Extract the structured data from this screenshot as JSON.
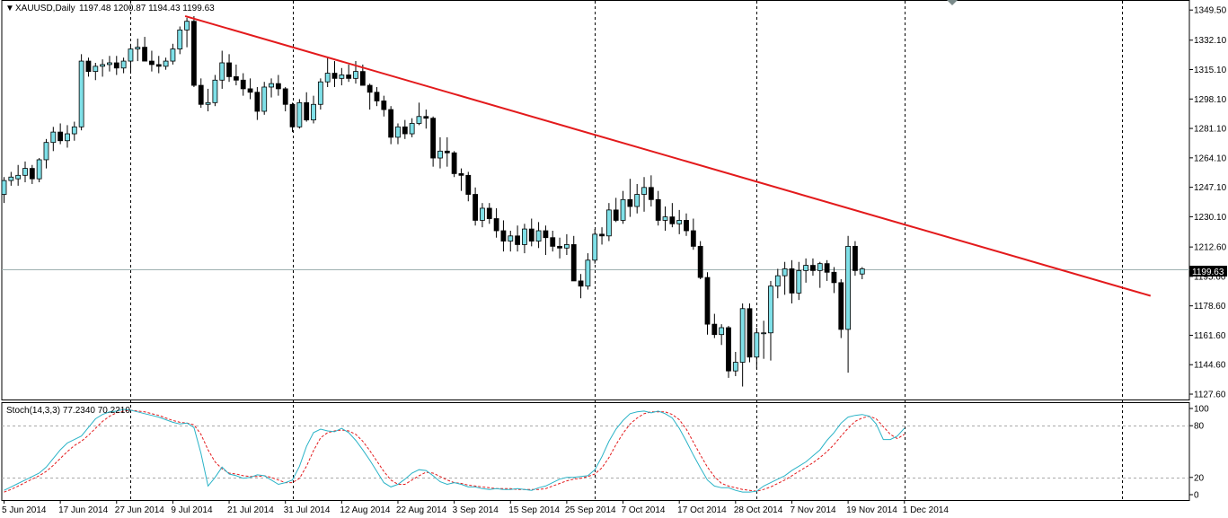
{
  "main_panel": {
    "symbol": "XAUUSD,Daily",
    "ohlc": "1197.48 1200.87 1194.43 1199.63",
    "current_price_label": "1199.63"
  },
  "indicator_panel": {
    "label": "Stoch(14,3,3) 77.2340 70.2210",
    "levels": [
      "100",
      "80",
      "20",
      "0"
    ]
  },
  "colors": {
    "bull_candle": "#7FE0E8",
    "bear_candle": "#000000",
    "trendline": "#E31A1C",
    "stoch_main": "#2AB3C7",
    "stoch_signal": "#E31A1C",
    "price_line": "#9EB0B0"
  },
  "chart_data": [
    {
      "type": "candlestick",
      "title": "XAUUSD,Daily",
      "y_ticks": [
        1349.5,
        1332.1,
        1315.1,
        1298.1,
        1281.1,
        1264.1,
        1247.1,
        1230.1,
        1212.6,
        1195.6,
        1178.6,
        1161.6,
        1144.6,
        1127.6
      ],
      "y_tick_labels": [
        "1349.50",
        "1332.10",
        "1315.10",
        "1298.10",
        "1281.10",
        "1264.10",
        "1247.10",
        "1230.10",
        "1212.60",
        "1195.60",
        "1178.60",
        "1161.60",
        "1144.60",
        "1127.60"
      ],
      "ylim": [
        1124.5,
        1355.3
      ],
      "x_tick_labels": [
        "5 Jun 2014",
        "17 Jun 2014",
        "27 Jun 2014",
        "9 Jul 2014",
        "21 Jul 2014",
        "31 Jul 2014",
        "12 Aug 2014",
        "22 Aug 2014",
        "3 Sep 2014",
        "15 Sep 2014",
        "25 Sep 2014",
        "7 Oct 2014",
        "17 Oct 2014",
        "28 Oct 2014",
        "7 Nov 2014",
        "19 Nov 2014",
        "1 Dec 2014"
      ],
      "x_tick_bars": [
        0,
        8,
        16,
        24,
        32,
        40,
        48,
        56,
        64,
        72,
        80,
        88,
        96,
        104,
        112,
        120,
        128
      ],
      "vertical_grid_bars": [
        18,
        41,
        84,
        107,
        128,
        159
      ],
      "current_price": 1199.63,
      "bars_total_slots": 169,
      "candles": [
        [
          1243,
          1253,
          1238,
          1251
        ],
        [
          1251,
          1256,
          1248,
          1253
        ],
        [
          1252,
          1260,
          1248,
          1254
        ],
        [
          1254,
          1262,
          1250,
          1258
        ],
        [
          1258,
          1260,
          1249,
          1252
        ],
        [
          1252,
          1264,
          1250,
          1263
        ],
        [
          1263,
          1275,
          1258,
          1273
        ],
        [
          1273,
          1282,
          1268,
          1279
        ],
        [
          1279,
          1284,
          1272,
          1274
        ],
        [
          1274,
          1283,
          1270,
          1278
        ],
        [
          1278,
          1285,
          1274,
          1282
        ],
        [
          1282,
          1324,
          1280,
          1320
        ],
        [
          1320,
          1322,
          1311,
          1314
        ],
        [
          1314,
          1319,
          1309,
          1317
        ],
        [
          1317,
          1321,
          1311,
          1318
        ],
        [
          1318,
          1323,
          1314,
          1319
        ],
        [
          1319,
          1323,
          1312,
          1316
        ],
        [
          1316,
          1322,
          1313,
          1320
        ],
        [
          1320,
          1330,
          1314,
          1327
        ],
        [
          1327,
          1333,
          1320,
          1328
        ],
        [
          1328,
          1334,
          1320,
          1320
        ],
        [
          1320,
          1326,
          1314,
          1318
        ],
        [
          1318,
          1323,
          1313,
          1317
        ],
        [
          1317,
          1322,
          1315,
          1320
        ],
        [
          1320,
          1330,
          1318,
          1327
        ],
        [
          1327,
          1340,
          1324,
          1338
        ],
        [
          1338,
          1345,
          1328,
          1343
        ],
        [
          1343,
          1346,
          1305,
          1306
        ],
        [
          1306,
          1310,
          1293,
          1295
        ],
        [
          1295,
          1304,
          1291,
          1296
        ],
        [
          1296,
          1312,
          1294,
          1309
        ],
        [
          1309,
          1326,
          1304,
          1319
        ],
        [
          1319,
          1324,
          1308,
          1311
        ],
        [
          1311,
          1318,
          1306,
          1309
        ],
        [
          1309,
          1313,
          1300,
          1304
        ],
        [
          1304,
          1310,
          1298,
          1302
        ],
        [
          1302,
          1305,
          1286,
          1291
        ],
        [
          1291,
          1308,
          1289,
          1305
        ],
        [
          1305,
          1310,
          1299,
          1307
        ],
        [
          1307,
          1312,
          1300,
          1304
        ],
        [
          1304,
          1305,
          1291,
          1295
        ],
        [
          1295,
          1296,
          1279,
          1282
        ],
        [
          1282,
          1298,
          1281,
          1296
        ],
        [
          1296,
          1302,
          1285,
          1286
        ],
        [
          1286,
          1300,
          1284,
          1295
        ],
        [
          1295,
          1310,
          1292,
          1308
        ],
        [
          1308,
          1322,
          1305,
          1313
        ],
        [
          1313,
          1320,
          1305,
          1310
        ],
        [
          1310,
          1316,
          1306,
          1312
        ],
        [
          1312,
          1318,
          1308,
          1310
        ],
        [
          1310,
          1320,
          1307,
          1314
        ],
        [
          1314,
          1318,
          1306,
          1306
        ],
        [
          1306,
          1307,
          1292,
          1302
        ],
        [
          1302,
          1305,
          1294,
          1297
        ],
        [
          1297,
          1300,
          1288,
          1292
        ],
        [
          1292,
          1294,
          1272,
          1276
        ],
        [
          1276,
          1284,
          1272,
          1282
        ],
        [
          1282,
          1286,
          1275,
          1278
        ],
        [
          1278,
          1287,
          1276,
          1284
        ],
        [
          1284,
          1296,
          1283,
          1288
        ],
        [
          1288,
          1292,
          1281,
          1287
        ],
        [
          1287,
          1288,
          1259,
          1264
        ],
        [
          1264,
          1276,
          1258,
          1268
        ],
        [
          1268,
          1276,
          1259,
          1267
        ],
        [
          1267,
          1268,
          1253,
          1255
        ],
        [
          1255,
          1258,
          1245,
          1254
        ],
        [
          1254,
          1256,
          1239,
          1243
        ],
        [
          1243,
          1247,
          1225,
          1228
        ],
        [
          1228,
          1238,
          1224,
          1235
        ],
        [
          1235,
          1238,
          1226,
          1229
        ],
        [
          1229,
          1235,
          1218,
          1222
        ],
        [
          1222,
          1228,
          1210,
          1216
        ],
        [
          1216,
          1222,
          1210,
          1219
        ],
        [
          1219,
          1225,
          1210,
          1214
        ],
        [
          1214,
          1226,
          1209,
          1223
        ],
        [
          1223,
          1229,
          1213,
          1216
        ],
        [
          1216,
          1227,
          1212,
          1222
        ],
        [
          1222,
          1225,
          1208,
          1218
        ],
        [
          1218,
          1222,
          1210,
          1213
        ],
        [
          1213,
          1218,
          1206,
          1212
        ],
        [
          1212,
          1220,
          1208,
          1214
        ],
        [
          1214,
          1219,
          1195,
          1193
        ],
        [
          1193,
          1197,
          1183,
          1190
        ],
        [
          1190,
          1209,
          1188,
          1205
        ],
        [
          1205,
          1223,
          1203,
          1220
        ],
        [
          1220,
          1224,
          1214,
          1219
        ],
        [
          1219,
          1238,
          1216,
          1234
        ],
        [
          1234,
          1241,
          1227,
          1228
        ],
        [
          1228,
          1245,
          1226,
          1240
        ],
        [
          1240,
          1252,
          1230,
          1236
        ],
        [
          1236,
          1249,
          1232,
          1243
        ],
        [
          1243,
          1253,
          1233,
          1247
        ],
        [
          1247,
          1254,
          1236,
          1240
        ],
        [
          1240,
          1245,
          1225,
          1228
        ],
        [
          1228,
          1236,
          1222,
          1230
        ],
        [
          1230,
          1238,
          1224,
          1226
        ],
        [
          1226,
          1234,
          1220,
          1228
        ],
        [
          1228,
          1232,
          1219,
          1222
        ],
        [
          1222,
          1229,
          1211,
          1213
        ],
        [
          1213,
          1216,
          1194,
          1195
        ],
        [
          1195,
          1198,
          1162,
          1168
        ],
        [
          1168,
          1174,
          1160,
          1162
        ],
        [
          1162,
          1168,
          1156,
          1166
        ],
        [
          1166,
          1167,
          1137,
          1141
        ],
        [
          1141,
          1152,
          1138,
          1146
        ],
        [
          1146,
          1180,
          1132,
          1177
        ],
        [
          1177,
          1180,
          1146,
          1149
        ],
        [
          1149,
          1166,
          1142,
          1163
        ],
        [
          1163,
          1170,
          1148,
          1163
        ],
        [
          1163,
          1193,
          1147,
          1190
        ],
        [
          1190,
          1200,
          1183,
          1196
        ],
        [
          1196,
          1204,
          1185,
          1200
        ],
        [
          1200,
          1205,
          1180,
          1186
        ],
        [
          1186,
          1204,
          1182,
          1199
        ],
        [
          1199,
          1206,
          1192,
          1202
        ],
        [
          1202,
          1206,
          1196,
          1199
        ],
        [
          1199,
          1204,
          1189,
          1203
        ],
        [
          1203,
          1205,
          1193,
          1198
        ],
        [
          1198,
          1201,
          1186,
          1192
        ],
        [
          1192,
          1194,
          1160,
          1165
        ],
        [
          1165,
          1219,
          1140,
          1213
        ],
        [
          1213,
          1216,
          1196,
          1199
        ],
        [
          1197,
          1201,
          1194,
          1200
        ]
      ]
    },
    {
      "type": "line",
      "title": "Stoch(14,3,3) 77.2340 70.2210",
      "ylim": [
        0,
        100
      ],
      "y_ticks": [
        100,
        80,
        20,
        0
      ],
      "series": [
        {
          "values": [
            5,
            9,
            13,
            17,
            21,
            25,
            32,
            42,
            52,
            60,
            64,
            68,
            78,
            88,
            93,
            96,
            97,
            99,
            98,
            96,
            94,
            92,
            90,
            87,
            84,
            82,
            83,
            78,
            48,
            10,
            20,
            32,
            24,
            22,
            19,
            20,
            23,
            22,
            17,
            12,
            14,
            17,
            33,
            56,
            72,
            76,
            74,
            73,
            77,
            72,
            63,
            52,
            40,
            27,
            14,
            9,
            12,
            18,
            25,
            29,
            28,
            22,
            15,
            12,
            14,
            12,
            9,
            9,
            7,
            6,
            7,
            6,
            6,
            7,
            6,
            5,
            8,
            10,
            14,
            18,
            20,
            20,
            21,
            22,
            29,
            44,
            62,
            76,
            86,
            94,
            96,
            97,
            95,
            97,
            94,
            89,
            77,
            62,
            46,
            31,
            17,
            10,
            8,
            8,
            5,
            3,
            3,
            4,
            10,
            14,
            18,
            22,
            28,
            33,
            38,
            45,
            52,
            63,
            72,
            83,
            90,
            92,
            93,
            91,
            82,
            64,
            64,
            68,
            77
          ]
        },
        {
          "values": [
            3,
            6,
            10,
            14,
            18,
            22,
            27,
            34,
            42,
            50,
            57,
            62,
            69,
            77,
            85,
            91,
            95,
            97,
            98,
            97,
            96,
            94,
            92,
            89,
            86,
            84,
            83,
            81,
            70,
            52,
            38,
            30,
            25,
            24,
            22,
            21,
            21,
            22,
            20,
            17,
            14,
            14,
            19,
            33,
            51,
            66,
            72,
            74,
            75,
            74,
            70,
            62,
            51,
            39,
            27,
            17,
            12,
            12,
            17,
            22,
            26,
            25,
            21,
            17,
            14,
            13,
            11,
            10,
            9,
            8,
            7,
            7,
            7,
            6,
            6,
            6,
            6,
            7,
            10,
            13,
            16,
            18,
            19,
            21,
            24,
            31,
            43,
            58,
            71,
            82,
            89,
            94,
            96,
            96,
            96,
            93,
            87,
            76,
            61,
            46,
            32,
            21,
            13,
            10,
            8,
            6,
            5,
            4,
            6,
            9,
            13,
            17,
            22,
            27,
            32,
            37,
            43,
            50,
            58,
            68,
            77,
            85,
            89,
            91,
            88,
            79,
            70,
            65,
            70
          ]
        }
      ]
    }
  ]
}
